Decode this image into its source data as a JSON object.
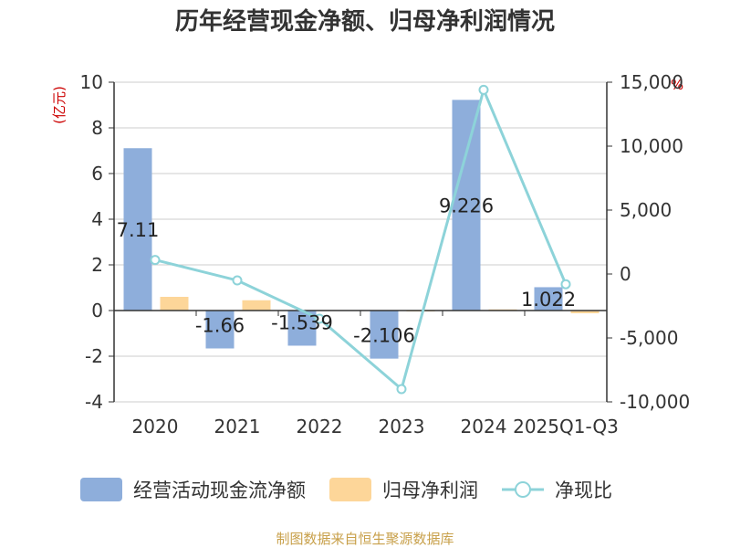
{
  "chart_data": {
    "type": "bar",
    "title": "历年经营现金净额、归母净利润情况",
    "categories": [
      "2020",
      "2021",
      "2022",
      "2023",
      "2024",
      "2025Q1-Q3"
    ],
    "left_axis": {
      "unit": "(亿元)",
      "ylim": [
        -4,
        10
      ],
      "ticks": [
        "10",
        "8",
        "6",
        "4",
        "2",
        "0",
        "-2",
        "-4"
      ],
      "tick_values": [
        10,
        8,
        6,
        4,
        2,
        0,
        -2,
        -4
      ]
    },
    "right_axis": {
      "unit": "%",
      "ylim": [
        -10000,
        15000
      ],
      "ticks": [
        "15,000",
        "10,000",
        "5,000",
        "0",
        "-5,000",
        "-10,000"
      ],
      "tick_values": [
        15000,
        10000,
        5000,
        0,
        -5000,
        -10000
      ]
    },
    "series": [
      {
        "name": "经营活动现金流净额",
        "type": "bar",
        "axis": "left",
        "color": "#8eaedb",
        "values": [
          7.11,
          -1.66,
          -1.539,
          -2.106,
          9.226,
          1.022
        ],
        "labels": [
          "7.11",
          "-1.66",
          "-1.539",
          "-2.106",
          "9.226",
          "1.022"
        ]
      },
      {
        "name": "归母净利润",
        "type": "bar",
        "axis": "left",
        "color": "#fdd699",
        "values": [
          0.6,
          0.45,
          0.02,
          -0.02,
          0.05,
          -0.12
        ]
      },
      {
        "name": "净现比",
        "type": "line",
        "axis": "right",
        "color": "#8dd3d9",
        "values": [
          1100,
          -500,
          -3500,
          -9000,
          14400,
          -800
        ]
      }
    ],
    "source": "制图数据来自恒生聚源数据库"
  }
}
